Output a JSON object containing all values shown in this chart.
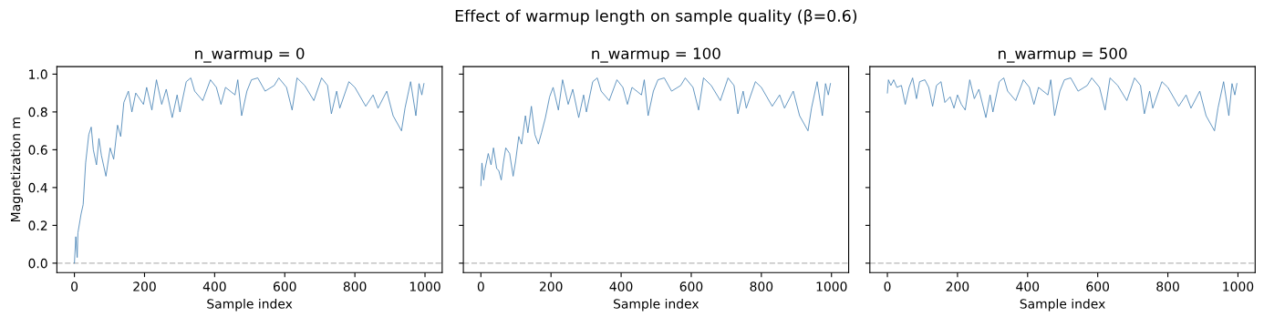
{
  "chart_data": [
    {
      "type": "line",
      "subtitle": "n_warmup = 0",
      "xlabel": "Sample index",
      "ylabel": "Magnetization m",
      "xlim": [
        -50,
        1049
      ],
      "ylim": [
        -0.05,
        1.04
      ],
      "xticks": [
        0,
        200,
        400,
        600,
        800,
        1000
      ],
      "yticks": [
        {
          "value": 0,
          "label": "0.0"
        },
        0.2,
        0.4,
        0.6,
        0.8,
        {
          "value": 1,
          "label": "1.0"
        }
      ],
      "grid": false,
      "ref_lines": [
        {
          "axis": "y",
          "value": 0,
          "color": "#cccccc",
          "line_style": "dashed"
        }
      ],
      "series": [
        {
          "color": "#4682b4",
          "x": [
            0,
            4,
            8,
            10,
            19,
            25,
            32,
            41,
            48,
            54,
            63,
            70,
            77,
            90,
            102,
            112,
            123,
            132,
            141,
            154,
            164,
            175,
            197,
            206,
            221,
            234,
            249,
            262,
            279,
            293,
            301,
            319,
            332,
            343,
            366,
            388,
            405,
            418,
            431,
            458,
            466,
            477,
            492,
            505,
            523,
            544,
            570,
            583,
            605,
            621,
            635,
            657,
            683,
            705,
            722,
            733,
            748,
            757,
            783,
            800,
            831,
            852,
            866,
            891,
            909,
            933,
            943,
            959,
            974,
            983,
            991,
            997
          ],
          "values": [
            0.0,
            0.14,
            0.03,
            0.16,
            0.26,
            0.31,
            0.53,
            0.68,
            0.72,
            0.6,
            0.52,
            0.66,
            0.57,
            0.46,
            0.61,
            0.55,
            0.73,
            0.67,
            0.85,
            0.91,
            0.8,
            0.9,
            0.84,
            0.93,
            0.81,
            0.97,
            0.84,
            0.92,
            0.77,
            0.89,
            0.8,
            0.96,
            0.98,
            0.91,
            0.86,
            0.97,
            0.93,
            0.84,
            0.93,
            0.89,
            0.97,
            0.78,
            0.91,
            0.97,
            0.98,
            0.91,
            0.94,
            0.98,
            0.93,
            0.81,
            0.98,
            0.94,
            0.86,
            0.98,
            0.94,
            0.79,
            0.91,
            0.82,
            0.96,
            0.93,
            0.83,
            0.89,
            0.82,
            0.91,
            0.78,
            0.7,
            0.82,
            0.96,
            0.78,
            0.95,
            0.89,
            0.95
          ]
        }
      ]
    },
    {
      "type": "line",
      "title": "Effect of warmup length on sample quality (β=0.6)",
      "subtitle": "n_warmup = 100",
      "xlabel": "Sample index",
      "xlim": [
        -50,
        1049
      ],
      "ylim": [
        -0.05,
        1.04
      ],
      "xticks": [
        0,
        200,
        400,
        600,
        800,
        1000
      ],
      "yticks": [
        0.0,
        0.2,
        0.4,
        0.6,
        0.8,
        1.0
      ],
      "tick_labels": "x",
      "grid": false,
      "ref_lines": [
        {
          "axis": "y",
          "value": 0,
          "color": "#cccccc",
          "line_style": "dashed"
        }
      ],
      "series": [
        {
          "color": "#4682b4",
          "x": [
            0,
            3,
            8,
            12,
            21,
            29,
            36,
            45,
            51,
            58,
            64,
            71,
            82,
            92,
            99,
            108,
            116,
            127,
            134,
            144,
            154,
            164,
            173,
            184,
            196,
            206,
            221,
            233,
            249,
            262,
            279,
            293,
            301,
            319,
            332,
            343,
            366,
            388,
            405,
            418,
            431,
            458,
            466,
            477,
            492,
            505,
            523,
            544,
            570,
            583,
            605,
            621,
            635,
            657,
            683,
            705,
            722,
            733,
            748,
            757,
            783,
            800,
            831,
            852,
            866,
            891,
            909,
            933,
            943,
            959,
            974,
            983,
            991,
            997
          ],
          "values": [
            0.41,
            0.53,
            0.44,
            0.5,
            0.58,
            0.52,
            0.61,
            0.5,
            0.49,
            0.44,
            0.53,
            0.61,
            0.58,
            0.46,
            0.54,
            0.67,
            0.63,
            0.78,
            0.69,
            0.83,
            0.68,
            0.63,
            0.69,
            0.77,
            0.88,
            0.93,
            0.81,
            0.97,
            0.84,
            0.92,
            0.77,
            0.89,
            0.8,
            0.96,
            0.98,
            0.91,
            0.86,
            0.97,
            0.93,
            0.84,
            0.93,
            0.89,
            0.97,
            0.78,
            0.91,
            0.97,
            0.98,
            0.91,
            0.94,
            0.98,
            0.93,
            0.81,
            0.98,
            0.94,
            0.86,
            0.98,
            0.94,
            0.79,
            0.91,
            0.82,
            0.96,
            0.93,
            0.83,
            0.89,
            0.82,
            0.91,
            0.78,
            0.7,
            0.82,
            0.96,
            0.78,
            0.95,
            0.89,
            0.95
          ]
        }
      ]
    },
    {
      "type": "line",
      "subtitle": "n_warmup = 500",
      "xlabel": "Sample index",
      "xlim": [
        -50,
        1049
      ],
      "ylim": [
        -0.05,
        1.04
      ],
      "xticks": [
        0,
        200,
        400,
        600,
        800,
        1000
      ],
      "yticks": [
        0.0,
        0.2,
        0.4,
        0.6,
        0.8,
        1.0
      ],
      "tick_labels": "x",
      "grid": false,
      "ref_lines": [
        {
          "axis": "y",
          "value": 0,
          "color": "#cccccc",
          "line_style": "dashed"
        }
      ],
      "series": [
        {
          "color": "#4682b4",
          "x": [
            0,
            3,
            10,
            18,
            27,
            40,
            51,
            62,
            72,
            83,
            92,
            107,
            118,
            129,
            140,
            153,
            164,
            179,
            190,
            200,
            211,
            222,
            235,
            248,
            261,
            281,
            293,
            301,
            319,
            332,
            343,
            366,
            388,
            405,
            418,
            431,
            458,
            466,
            477,
            492,
            505,
            523,
            544,
            570,
            583,
            605,
            621,
            635,
            657,
            683,
            705,
            722,
            733,
            748,
            757,
            783,
            800,
            831,
            852,
            866,
            891,
            909,
            933,
            943,
            959,
            974,
            983,
            991,
            997
          ],
          "values": [
            0.9,
            0.97,
            0.94,
            0.97,
            0.93,
            0.94,
            0.84,
            0.93,
            0.98,
            0.87,
            0.96,
            0.97,
            0.93,
            0.83,
            0.94,
            0.96,
            0.85,
            0.88,
            0.82,
            0.89,
            0.84,
            0.81,
            0.97,
            0.87,
            0.92,
            0.77,
            0.89,
            0.8,
            0.96,
            0.98,
            0.91,
            0.86,
            0.97,
            0.93,
            0.84,
            0.93,
            0.89,
            0.97,
            0.78,
            0.91,
            0.97,
            0.98,
            0.91,
            0.94,
            0.98,
            0.93,
            0.81,
            0.98,
            0.94,
            0.86,
            0.98,
            0.94,
            0.79,
            0.91,
            0.82,
            0.96,
            0.93,
            0.83,
            0.89,
            0.82,
            0.91,
            0.78,
            0.7,
            0.82,
            0.96,
            0.78,
            0.95,
            0.89,
            0.95
          ]
        }
      ]
    }
  ]
}
